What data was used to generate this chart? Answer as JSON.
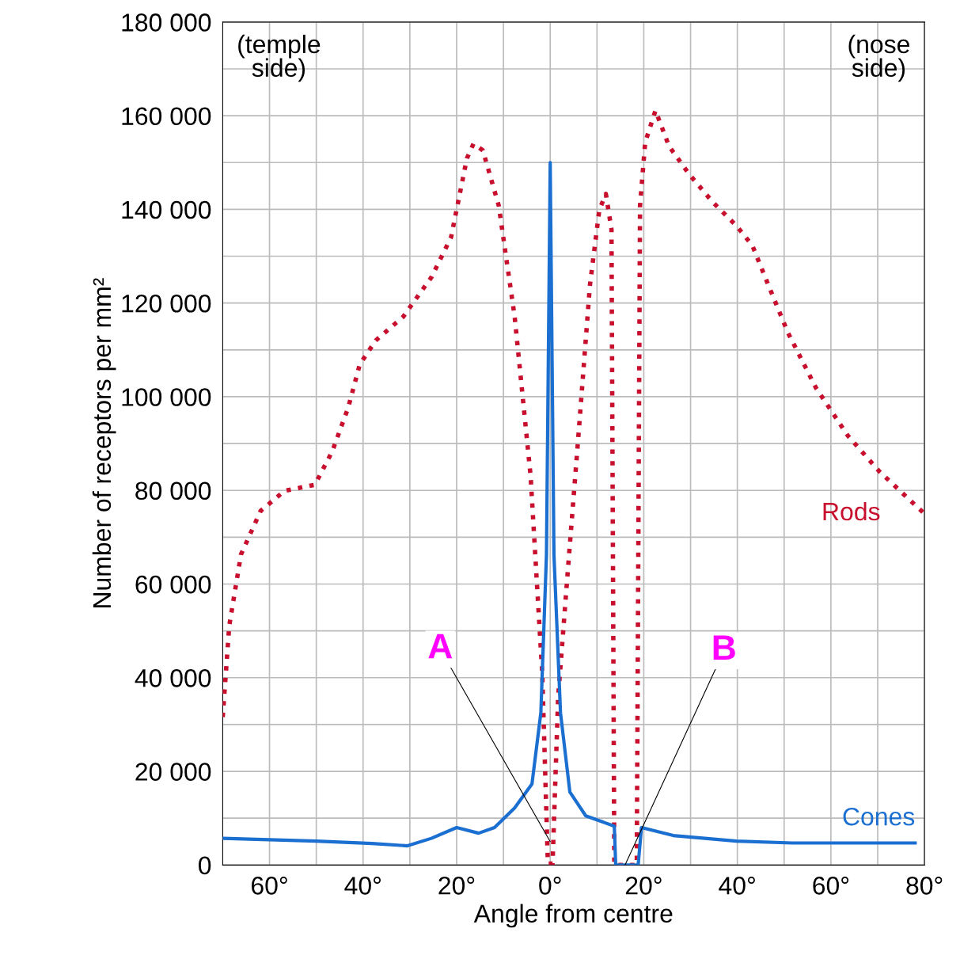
{
  "chart_data": {
    "type": "line",
    "xlabel": "Angle from centre",
    "ylabel": "Number of receptors per mm²",
    "xlim": [
      -70,
      80
    ],
    "xticks": [
      {
        "value": -60,
        "label": "60°"
      },
      {
        "value": -50,
        "label": null
      },
      {
        "value": -40,
        "label": "40°"
      },
      {
        "value": -30,
        "label": null
      },
      {
        "value": -20,
        "label": "20°"
      },
      {
        "value": -10,
        "label": null
      },
      {
        "value": 0,
        "label": "0°"
      },
      {
        "value": 10,
        "label": null
      },
      {
        "value": 20,
        "label": "20°"
      },
      {
        "value": 30,
        "label": null
      },
      {
        "value": 40,
        "label": "40°"
      },
      {
        "value": 50,
        "label": null
      },
      {
        "value": 60,
        "label": "60°"
      },
      {
        "value": 70,
        "label": null
      },
      {
        "value": 80,
        "label": "80°"
      }
    ],
    "ylim": [
      0,
      180000
    ],
    "yticks": [
      0,
      {
        "value": 10000,
        "label": null
      },
      {
        "value": 20000,
        "label": "20 000"
      },
      {
        "value": 30000,
        "label": null
      },
      {
        "value": 40000,
        "label": "40 000"
      },
      {
        "value": 50000,
        "label": null
      },
      {
        "value": 60000,
        "label": "60 000"
      },
      {
        "value": 70000,
        "label": null
      },
      {
        "value": 80000,
        "label": "80 000"
      },
      {
        "value": 90000,
        "label": null
      },
      {
        "value": 100000,
        "label": "100 000"
      },
      {
        "value": 110000,
        "label": null
      },
      {
        "value": 120000,
        "label": "120 000"
      },
      {
        "value": 130000,
        "label": null
      },
      {
        "value": 140000,
        "label": "140 000"
      },
      {
        "value": 150000,
        "label": null
      },
      {
        "value": 160000,
        "label": "160 000"
      },
      {
        "value": 170000,
        "label": null
      },
      {
        "value": 180000,
        "label": "180 000"
      }
    ],
    "grid": true,
    "legend": false,
    "marker": "none",
    "series": [
      {
        "name": "Rods",
        "color": "#c8102e",
        "line_style": "dotted",
        "x": [
          -70,
          -68.6,
          -66.1,
          -61.9,
          -56.8,
          -50.3,
          -46.6,
          -43.2,
          -40.7,
          -37.3,
          -31.4,
          -25.4,
          -21.2,
          -17.8,
          -16.4,
          -14.4,
          -11,
          -7.6,
          -4.2,
          -1.7,
          -0.5,
          0.5,
          1.7,
          3.9,
          5.9,
          8.5,
          10.5,
          11.9,
          13.1,
          13.7,
          18.5,
          19.2,
          20.3,
          22.5,
          25.4,
          29.7,
          34.7,
          39.8,
          43.2,
          46.6,
          50.8,
          56.8,
          63.6,
          70.3,
          80
        ],
        "values": [
          31600,
          51100,
          66300,
          75600,
          79900,
          81200,
          88300,
          97600,
          106900,
          112000,
          117100,
          125500,
          134000,
          150900,
          154000,
          152600,
          140800,
          117100,
          83200,
          40900,
          300,
          300,
          35900,
          64600,
          90000,
          123900,
          139900,
          143300,
          135700,
          0,
          0,
          140800,
          154300,
          161100,
          153500,
          147500,
          141600,
          136500,
          132300,
          123900,
          113700,
          101900,
          91700,
          84100,
          75000
        ]
      },
      {
        "name": "Cones",
        "color": "#1a6fd0",
        "line_style": "solid",
        "x": [
          -70,
          -50,
          -38.1,
          -30.5,
          -25.4,
          -20,
          -15.3,
          -11.9,
          -7.6,
          -3.9,
          -2,
          -0.8,
          0,
          0.8,
          2.2,
          4.2,
          7.6,
          13.7,
          14,
          18.8,
          19.5,
          26.3,
          39.8,
          51.7,
          78
        ],
        "values": [
          5700,
          5100,
          4600,
          4100,
          5700,
          8000,
          6800,
          8000,
          12200,
          17300,
          32500,
          66300,
          150000,
          66300,
          32500,
          15600,
          10500,
          8300,
          0,
          0,
          8000,
          6300,
          5100,
          4700,
          4700
        ]
      }
    ],
    "annotations": [
      "(temple\nside)",
      "(nose\nside)",
      {
        "text": "A",
        "x": 0,
        "y": 5000
      },
      {
        "text": "B",
        "x": 16,
        "y": 0
      }
    ]
  }
}
